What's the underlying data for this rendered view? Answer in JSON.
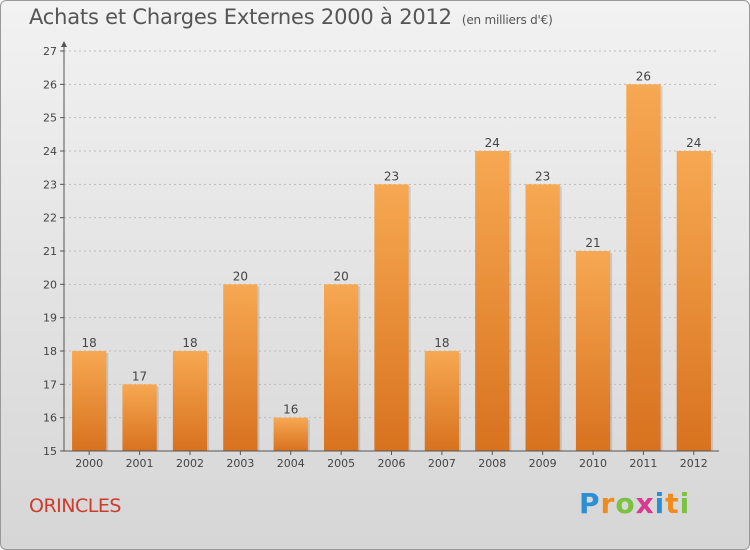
{
  "title": "Achats et Charges Externes 2000 à 2012",
  "subtitle": "(en milliers d'€)",
  "place": "ORINCLES",
  "logo": {
    "text": "Proxiti",
    "letters": [
      {
        "ch": "P",
        "color": "#2b8fd6"
      },
      {
        "ch": "r",
        "color": "#f08a1c"
      },
      {
        "ch": "o",
        "color": "#7cc242"
      },
      {
        "ch": "x",
        "color": "#d93a8f"
      },
      {
        "ch": "i",
        "color": "#2b8fd6"
      },
      {
        "ch": "t",
        "color": "#f08a1c"
      },
      {
        "ch": "i",
        "color": "#7cc242"
      }
    ]
  },
  "colors": {
    "bar_top": "#f7a852",
    "bar_bottom": "#d8721f",
    "axis": "#555555",
    "grid": "#bbbbbb",
    "text": "#444444"
  },
  "chart_data": {
    "type": "bar",
    "categories": [
      "2000",
      "2001",
      "2002",
      "2003",
      "2004",
      "2005",
      "2006",
      "2007",
      "2008",
      "2009",
      "2010",
      "2011",
      "2012"
    ],
    "values": [
      18,
      17,
      18,
      20,
      16,
      20,
      23,
      18,
      24,
      23,
      21,
      26,
      24
    ],
    "data_labels": [
      "18",
      "17",
      "18",
      "20",
      "16",
      "20",
      "23",
      "18",
      "24",
      "23",
      "21",
      "26",
      "24"
    ],
    "ylim": [
      15,
      27
    ],
    "yticks": [
      "15",
      "16",
      "17",
      "18",
      "19",
      "20",
      "21",
      "22",
      "23",
      "24",
      "25",
      "26",
      "27"
    ],
    "grid": true,
    "xlabel": "",
    "ylabel": ""
  }
}
